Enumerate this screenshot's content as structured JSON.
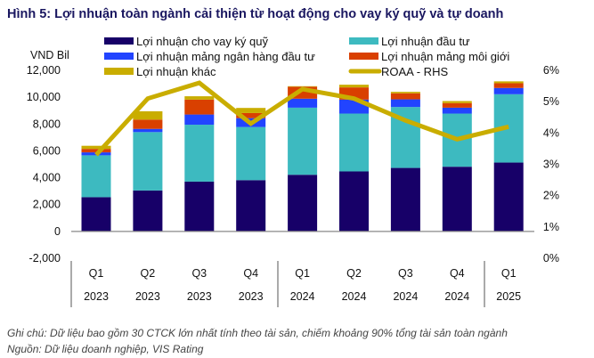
{
  "title": "Hình 5: Lợi nhuận toàn ngành cải thiện từ hoạt động cho vay ký quỹ và tự doanh",
  "footnote": "Ghi chú: Dữ liệu bao gồm 30 CTCK lớn nhất tính theo tài sản, chiếm khoảng 90% tổng tài sản toàn ngành",
  "source": "Nguồn: Dữ liệu doanh nghiệp, VIS Rating",
  "chart_data": {
    "type": "bar",
    "stacked": true,
    "ylabel": "VND Bil",
    "ylim": [
      -2000,
      12000
    ],
    "yticks": [
      "12,000",
      "10,000",
      "8,000",
      "6,000",
      "4,000",
      "2,000",
      "0",
      "-2,000"
    ],
    "y2lim": [
      0,
      6
    ],
    "y2ticks": [
      "6%",
      "5%",
      "4%",
      "3%",
      "2%",
      "1%",
      "0%"
    ],
    "grid": false,
    "legend_placement": "top",
    "categories": [
      {
        "q": "Q1",
        "y": "2023"
      },
      {
        "q": "Q2",
        "y": "2023"
      },
      {
        "q": "Q3",
        "y": "2023"
      },
      {
        "q": "Q4",
        "y": "2023"
      },
      {
        "q": "Q1",
        "y": "2024"
      },
      {
        "q": "Q2",
        "y": "2024"
      },
      {
        "q": "Q3",
        "y": "2024"
      },
      {
        "q": "Q4",
        "y": "2024"
      },
      {
        "q": "Q1",
        "y": "2025"
      }
    ],
    "series": [
      {
        "name": "Lợi nhuận cho vay ký quỹ",
        "color": "#170068",
        "values": [
          2550,
          3050,
          3710,
          3820,
          4220,
          4470,
          4730,
          4820,
          5130
        ]
      },
      {
        "name": "Lợi nhuận đầu tư",
        "color": "#3dbac0",
        "values": [
          3120,
          4350,
          4240,
          3960,
          5000,
          4310,
          4540,
          3960,
          5090
        ]
      },
      {
        "name": "Lợi nhuận mảng ngân hàng đầu tư",
        "color": "#2244ff",
        "values": [
          220,
          240,
          760,
          660,
          670,
          1040,
          570,
          440,
          470
        ]
      },
      {
        "name": "Lợi nhuận mảng môi giới",
        "color": "#d94000",
        "values": [
          260,
          690,
          1110,
          380,
          890,
          910,
          450,
          340,
          350
        ]
      },
      {
        "name": "Lợi nhuận khác",
        "color": "#c9ad00",
        "values": [
          230,
          620,
          250,
          380,
          40,
          200,
          110,
          150,
          140
        ]
      }
    ],
    "line_series": {
      "name": "ROAA - RHS",
      "color": "#c9ad00",
      "axis": "right",
      "unit": "%",
      "values": [
        3.3,
        5.1,
        5.6,
        4.3,
        5.4,
        5.1,
        4.4,
        3.8,
        4.2
      ]
    }
  }
}
